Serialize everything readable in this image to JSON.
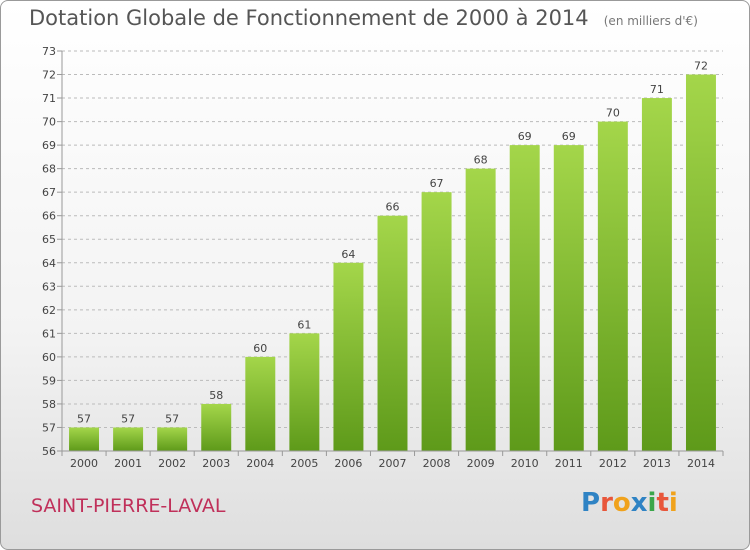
{
  "header": {
    "title": "Dotation Globale de Fonctionnement de 2000 à 2014",
    "unit": "(en milliers d'€)"
  },
  "footer": {
    "commune": "SAINT-PIERRE-LAVAL",
    "logo_text": "Proxiti",
    "logo_colors": [
      "#2f83c4",
      "#e8563a",
      "#f0a21c",
      "#2f83c4",
      "#3aa64a",
      "#e8563a",
      "#f0a21c"
    ]
  },
  "colors": {
    "bar_light": "#a4d64a",
    "bar_dark": "#5e9a1a",
    "grid": "#bbbbbb",
    "axis": "#999999"
  },
  "chart_data": {
    "type": "bar",
    "title": "Dotation Globale de Fonctionnement de 2000 à 2014",
    "subtitle": "(en milliers d'€)",
    "xlabel": "",
    "ylabel": "",
    "categories": [
      "2000",
      "2001",
      "2002",
      "2003",
      "2004",
      "2005",
      "2006",
      "2007",
      "2008",
      "2009",
      "2010",
      "2011",
      "2012",
      "2013",
      "2014"
    ],
    "values": [
      57,
      57,
      57,
      58,
      60,
      61,
      64,
      66,
      67,
      68,
      69,
      69,
      70,
      71,
      72
    ],
    "ylim": [
      56,
      73
    ],
    "yticks": [
      56,
      57,
      58,
      59,
      60,
      61,
      62,
      63,
      64,
      65,
      66,
      67,
      68,
      69,
      70,
      71,
      72,
      73
    ],
    "grid": true,
    "grid_style": "dashed",
    "data_labels": true
  }
}
